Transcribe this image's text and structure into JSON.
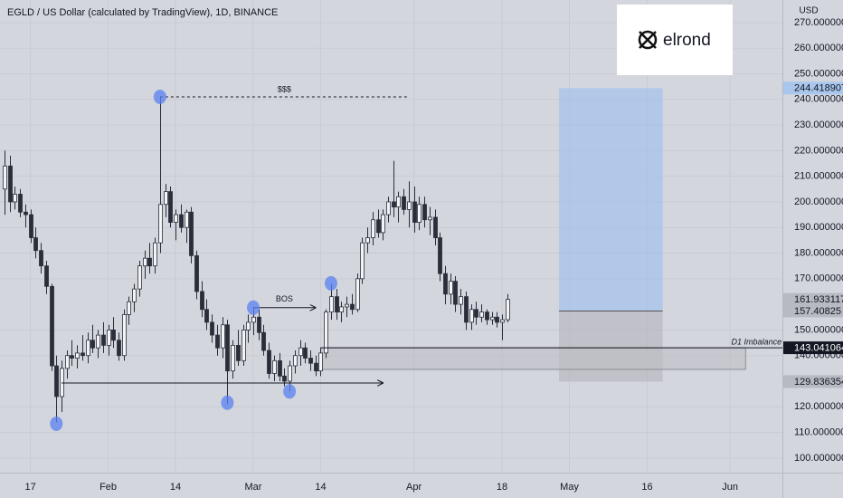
{
  "chart_data": {
    "type": "candlestick",
    "title": "EGLD / US Dollar (calculated by TradingView), 1D, BINANCE",
    "currency": "USD",
    "logo": "elrond",
    "xlim": [
      -0.87,
      150.1
    ],
    "ylim": [
      94.3,
      278.8
    ],
    "xticks": [
      {
        "value": 5,
        "label": "17"
      },
      {
        "value": 20,
        "label": "Feb"
      },
      {
        "value": 33,
        "label": "14"
      },
      {
        "value": 48,
        "label": "Mar"
      },
      {
        "value": 61,
        "label": "14"
      },
      {
        "value": 79,
        "label": "Apr"
      },
      {
        "value": 96,
        "label": "18"
      },
      {
        "value": 109,
        "label": "May"
      },
      {
        "value": 124,
        "label": "16"
      },
      {
        "value": 140,
        "label": "Jun"
      }
    ],
    "yticks": [
      {
        "value": 100,
        "label": "100.000000"
      },
      {
        "value": 110,
        "label": "110.000000"
      },
      {
        "value": 120,
        "label": "120.000000"
      },
      {
        "value": 140,
        "label": "140.000000"
      },
      {
        "value": 150,
        "label": "150.000000"
      },
      {
        "value": 170,
        "label": "170.000000"
      },
      {
        "value": 180,
        "label": "180.000000"
      },
      {
        "value": 190,
        "label": "190.000000"
      },
      {
        "value": 200,
        "label": "200.000000"
      },
      {
        "value": 210,
        "label": "210.000000"
      },
      {
        "value": 220,
        "label": "220.000000"
      },
      {
        "value": 230,
        "label": "230.000000"
      },
      {
        "value": 240,
        "label": "240.000000"
      },
      {
        "value": 250,
        "label": "250.000000"
      },
      {
        "value": 260,
        "label": "260.000000"
      },
      {
        "value": 270,
        "label": "270.000000"
      }
    ],
    "grid": true,
    "up_color": "#f4f4f6",
    "down_color": "#2a2e39",
    "price_tags": [
      {
        "value": 244.418907,
        "color": "#a9c6ec"
      },
      {
        "value": 161.933117,
        "color": "#b8bac2"
      },
      {
        "value": 157.40825,
        "color": "#b8bac2"
      },
      {
        "value": 143.041064,
        "color": "#131722"
      },
      {
        "value": 129.836354,
        "color": "#b8bac2"
      }
    ],
    "candles": [
      [
        205,
        220,
        195,
        214
      ],
      [
        214,
        218,
        196,
        200
      ],
      [
        200,
        206,
        197,
        203
      ],
      [
        203,
        205,
        194,
        196
      ],
      [
        196,
        199,
        190,
        195
      ],
      [
        195,
        197,
        184,
        186
      ],
      [
        186,
        190,
        178,
        181
      ],
      [
        181,
        184,
        172,
        175
      ],
      [
        175,
        177,
        164,
        167
      ],
      [
        167,
        168,
        134,
        136
      ],
      [
        136,
        140,
        114,
        124
      ],
      [
        124,
        138,
        118,
        135
      ],
      [
        135,
        142,
        131,
        140
      ],
      [
        140,
        146,
        136,
        139
      ],
      [
        139,
        144,
        135,
        141
      ],
      [
        141,
        148,
        138,
        140
      ],
      [
        140,
        149,
        137,
        146
      ],
      [
        146,
        152,
        141,
        143
      ],
      [
        143,
        150,
        139,
        148
      ],
      [
        148,
        153,
        141,
        144
      ],
      [
        144,
        152,
        140,
        150
      ],
      [
        150,
        155,
        143,
        146
      ],
      [
        146,
        149,
        138,
        140
      ],
      [
        140,
        158,
        138,
        156
      ],
      [
        156,
        163,
        152,
        161
      ],
      [
        161,
        168,
        157,
        166
      ],
      [
        166,
        177,
        163,
        175
      ],
      [
        175,
        181,
        170,
        178
      ],
      [
        178,
        184,
        172,
        175
      ],
      [
        175,
        186,
        172,
        184
      ],
      [
        184,
        241,
        180,
        199
      ],
      [
        199,
        207,
        194,
        204
      ],
      [
        204,
        206,
        190,
        192
      ],
      [
        192,
        197,
        185,
        195
      ],
      [
        195,
        199,
        188,
        190
      ],
      [
        190,
        197,
        184,
        196
      ],
      [
        196,
        198,
        176,
        179
      ],
      [
        179,
        181,
        162,
        165
      ],
      [
        165,
        169,
        155,
        158
      ],
      [
        158,
        162,
        150,
        153
      ],
      [
        153,
        156,
        145,
        148
      ],
      [
        148,
        152,
        140,
        143
      ],
      [
        143,
        155,
        139,
        152
      ],
      [
        152,
        154,
        121,
        134
      ],
      [
        134,
        146,
        131,
        144
      ],
      [
        144,
        150,
        136,
        138
      ],
      [
        138,
        152,
        136,
        150
      ],
      [
        150,
        156,
        145,
        153
      ],
      [
        153,
        159,
        148,
        155
      ],
      [
        155,
        158,
        146,
        149
      ],
      [
        149,
        152,
        140,
        142
      ],
      [
        142,
        145,
        131,
        133
      ],
      [
        133,
        140,
        130,
        138
      ],
      [
        138,
        141,
        130,
        132
      ],
      [
        132,
        135,
        128,
        130
      ],
      [
        130,
        138,
        126,
        136
      ],
      [
        136,
        142,
        133,
        140
      ],
      [
        140,
        146,
        136,
        143
      ],
      [
        143,
        145,
        137,
        139
      ],
      [
        139,
        142,
        134,
        137
      ],
      [
        137,
        140,
        132,
        134
      ],
      [
        134,
        143,
        132,
        141
      ],
      [
        141,
        158,
        139,
        157
      ],
      [
        157,
        168,
        154,
        163
      ],
      [
        163,
        166,
        154,
        157
      ],
      [
        157,
        161,
        153,
        159
      ],
      [
        159,
        163,
        155,
        160
      ],
      [
        160,
        164,
        156,
        158
      ],
      [
        158,
        172,
        157,
        170
      ],
      [
        170,
        186,
        168,
        184
      ],
      [
        184,
        190,
        180,
        186
      ],
      [
        186,
        196,
        183,
        193
      ],
      [
        193,
        197,
        186,
        188
      ],
      [
        188,
        197,
        185,
        195
      ],
      [
        195,
        202,
        192,
        200
      ],
      [
        200,
        216,
        194,
        198
      ],
      [
        198,
        204,
        192,
        202
      ],
      [
        202,
        205,
        195,
        197
      ],
      [
        197,
        208,
        190,
        200
      ],
      [
        200,
        206,
        188,
        192
      ],
      [
        192,
        202,
        189,
        199
      ],
      [
        199,
        202,
        190,
        193
      ],
      [
        193,
        198,
        187,
        194
      ],
      [
        194,
        197,
        183,
        186
      ],
      [
        186,
        188,
        169,
        172
      ],
      [
        172,
        175,
        160,
        164
      ],
      [
        164,
        172,
        160,
        169
      ],
      [
        169,
        171,
        157,
        160
      ],
      [
        160,
        166,
        156,
        163
      ],
      [
        163,
        165,
        150,
        153
      ],
      [
        153,
        160,
        150,
        158
      ],
      [
        158,
        161,
        152,
        155
      ],
      [
        155,
        160,
        153,
        157
      ],
      [
        157,
        158,
        152,
        154
      ],
      [
        154,
        157,
        152,
        155
      ],
      [
        155,
        157,
        151,
        153
      ],
      [
        153,
        156,
        146,
        154
      ],
      [
        154,
        164,
        153,
        161.933117
      ]
    ],
    "annotations": {
      "liquidity_line": {
        "label": "$$$",
        "y": 241,
        "x": [
          30,
          78
        ]
      },
      "bos": {
        "label": "BOS",
        "y": 158.7,
        "x": [
          48,
          60
        ]
      },
      "sweep_line": {
        "y": 129.3,
        "x": [
          11,
          73
        ]
      },
      "circles": [
        {
          "x": 10,
          "y": 113.4
        },
        {
          "x": 30,
          "y": 241
        },
        {
          "x": 43,
          "y": 121.6
        },
        {
          "x": 48,
          "y": 158.7
        },
        {
          "x": 55,
          "y": 126
        },
        {
          "x": 63,
          "y": 168.2
        }
      ],
      "imbalance": {
        "label": "D1 Imbalance",
        "x": [
          61,
          143
        ],
        "y": [
          134.6,
          143.1
        ]
      },
      "target_box": {
        "x": [
          107,
          127
        ],
        "y": [
          157.40825,
          244.418907
        ]
      },
      "stop_box": {
        "x": [
          107,
          127
        ],
        "y": [
          129.836354,
          157.40825
        ]
      }
    }
  }
}
